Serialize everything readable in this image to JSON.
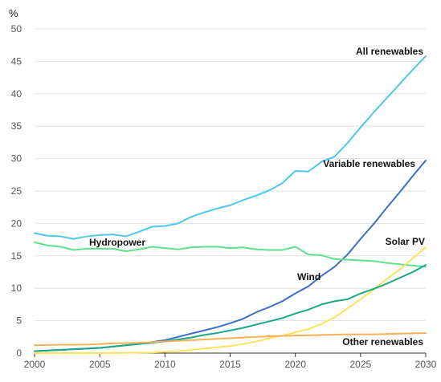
{
  "chart_data": {
    "type": "line",
    "ylabel": "%",
    "xlabel": "",
    "title": "",
    "xlim": [
      2000,
      2030
    ],
    "ylim": [
      0,
      50
    ],
    "x_ticks": [
      2000,
      2005,
      2010,
      2015,
      2020,
      2025,
      2030
    ],
    "y_ticks": [
      0,
      5,
      10,
      15,
      20,
      25,
      30,
      35,
      40,
      45,
      50
    ],
    "grid": "horizontal",
    "legend": "inline labels",
    "series": [
      {
        "name": "All renewables",
        "color": "#4dc8ec",
        "x": [
          2000,
          2001,
          2002,
          2003,
          2004,
          2005,
          2006,
          2007,
          2008,
          2009,
          2010,
          2011,
          2012,
          2013,
          2014,
          2015,
          2016,
          2017,
          2018,
          2019,
          2020,
          2021,
          2022,
          2023,
          2024,
          2025,
          2026,
          2027,
          2028,
          2029,
          2030
        ],
        "values": [
          18.5,
          18.1,
          18.0,
          17.6,
          18.0,
          18.2,
          18.3,
          18.0,
          18.7,
          19.5,
          19.6,
          20.0,
          21.0,
          21.7,
          22.3,
          22.8,
          23.6,
          24.3,
          25.1,
          26.2,
          28.1,
          28.0,
          29.5,
          30.3,
          32.4,
          34.8,
          37.1,
          39.3,
          41.5,
          43.7,
          45.8
        ]
      },
      {
        "name": "Variable renewables",
        "color": "#3a6fc9",
        "x": [
          2000,
          2001,
          2002,
          2003,
          2004,
          2005,
          2006,
          2007,
          2008,
          2009,
          2010,
          2011,
          2012,
          2013,
          2014,
          2015,
          2016,
          2017,
          2018,
          2019,
          2020,
          2021,
          2022,
          2023,
          2024,
          2025,
          2026,
          2027,
          2028,
          2029,
          2030
        ],
        "values": [
          0.3,
          0.4,
          0.5,
          0.6,
          0.7,
          0.8,
          1.0,
          1.2,
          1.4,
          1.7,
          2.0,
          2.5,
          3.0,
          3.5,
          4.0,
          4.6,
          5.3,
          6.3,
          7.1,
          8.0,
          9.2,
          10.3,
          11.9,
          13.3,
          15.2,
          17.6,
          19.9,
          22.4,
          24.8,
          27.3,
          29.7
        ]
      },
      {
        "name": "Hydropower",
        "color": "#5fe08f",
        "x": [
          2000,
          2001,
          2002,
          2003,
          2004,
          2005,
          2006,
          2007,
          2008,
          2009,
          2010,
          2011,
          2012,
          2013,
          2014,
          2015,
          2016,
          2017,
          2018,
          2019,
          2020,
          2021,
          2022,
          2023,
          2024,
          2025,
          2026,
          2027,
          2028,
          2029,
          2030
        ],
        "values": [
          17.1,
          16.6,
          16.4,
          15.9,
          16.1,
          16.1,
          16.1,
          15.7,
          16.0,
          16.4,
          16.2,
          16.0,
          16.3,
          16.4,
          16.4,
          16.2,
          16.3,
          16.0,
          15.9,
          15.9,
          16.4,
          15.2,
          15.1,
          14.5,
          14.4,
          14.3,
          14.2,
          13.9,
          13.7,
          13.5,
          13.3
        ]
      },
      {
        "name": "Solar PV",
        "color": "#fbe45d",
        "x": [
          2000,
          2005,
          2009,
          2010,
          2011,
          2012,
          2013,
          2014,
          2015,
          2016,
          2017,
          2018,
          2019,
          2020,
          2021,
          2022,
          2023,
          2024,
          2025,
          2026,
          2027,
          2028,
          2029,
          2030
        ],
        "values": [
          0.0,
          0.0,
          0.1,
          0.2,
          0.3,
          0.5,
          0.7,
          0.9,
          1.1,
          1.4,
          1.8,
          2.3,
          2.7,
          3.2,
          3.7,
          4.5,
          5.5,
          6.9,
          8.3,
          9.8,
          11.4,
          12.9,
          14.6,
          16.3
        ]
      },
      {
        "name": "Wind",
        "color": "#1aa889",
        "x": [
          2000,
          2001,
          2002,
          2003,
          2004,
          2005,
          2006,
          2007,
          2008,
          2009,
          2010,
          2011,
          2012,
          2013,
          2014,
          2015,
          2016,
          2017,
          2018,
          2019,
          2020,
          2021,
          2022,
          2023,
          2024,
          2025,
          2026,
          2027,
          2028,
          2029,
          2030
        ],
        "values": [
          0.3,
          0.4,
          0.5,
          0.6,
          0.7,
          0.8,
          1.0,
          1.2,
          1.4,
          1.6,
          1.8,
          2.1,
          2.4,
          2.8,
          3.1,
          3.5,
          3.9,
          4.4,
          4.9,
          5.4,
          6.1,
          6.7,
          7.5,
          8.0,
          8.3,
          9.2,
          9.9,
          10.7,
          11.6,
          12.5,
          13.6
        ]
      },
      {
        "name": "Other renewables",
        "color": "#f6b155",
        "x": [
          2000,
          2002,
          2004,
          2006,
          2008,
          2010,
          2012,
          2014,
          2016,
          2018,
          2020,
          2022,
          2024,
          2026,
          2028,
          2030
        ],
        "values": [
          1.2,
          1.3,
          1.3,
          1.5,
          1.6,
          1.8,
          2.0,
          2.2,
          2.4,
          2.6,
          2.7,
          2.8,
          2.9,
          2.9,
          3.0,
          3.1
        ]
      }
    ]
  }
}
